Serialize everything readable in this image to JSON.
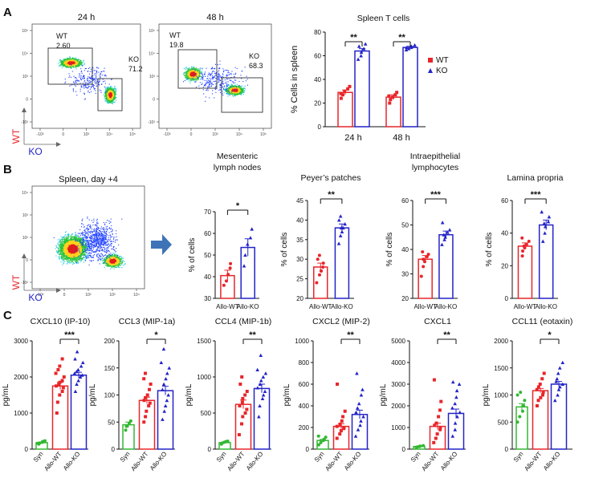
{
  "panels": {
    "A": {
      "letter": "A",
      "flow": [
        {
          "title": "24 h",
          "gates": [
            {
              "name": "WT",
              "value": "2.60"
            },
            {
              "name": "KO",
              "value": "71.2"
            }
          ]
        },
        {
          "title": "48 h",
          "gates": [
            {
              "name": "WT",
              "value": "19.8"
            },
            {
              "name": "KO",
              "value": "68.3"
            }
          ]
        }
      ],
      "axes": {
        "y": "WT",
        "x": "KO"
      },
      "log_ticks": [
        "10⁵",
        "10⁴",
        "10³",
        "0",
        "-10³"
      ],
      "log_ticks_x": [
        "-10³",
        "0",
        "10³",
        "10⁴",
        "10⁵"
      ]
    },
    "B": {
      "letter": "B",
      "flow_title": "Spleen, day +4",
      "axes": {
        "y": "WT",
        "x": "KO"
      },
      "log_ticks": [
        "10⁴",
        "10³",
        "10²",
        "0",
        "-10²"
      ],
      "log_ticks_x": [
        "-10²",
        "0",
        "10²",
        "10³",
        "10⁴"
      ]
    },
    "C": {
      "letter": "C"
    }
  },
  "colors": {
    "wt": "#e8262a",
    "ko": "#2323c8",
    "syn": "#33b733",
    "gate": "#333333",
    "arrow": "#3e73b8"
  },
  "chart_data": [
    {
      "id": "spleen-t-cells",
      "type": "bar",
      "title": "Spleen T cells",
      "ylabel": "% Cells in spleen",
      "ylim": [
        0,
        80
      ],
      "yticks": [
        0,
        20,
        40,
        60,
        80
      ],
      "categories": [
        "24 h",
        "48 h"
      ],
      "legend": [
        {
          "name": "WT",
          "marker": "square",
          "color": "#e8262a"
        },
        {
          "name": "KO",
          "marker": "triangle",
          "color": "#2323c8"
        }
      ],
      "series": [
        {
          "name": "WT",
          "values": [
            29,
            25
          ],
          "err": [
            2,
            2
          ],
          "points": [
            [
              24,
              27,
              30,
              32,
              34,
              28
            ],
            [
              20,
              23,
              25,
              27,
              29,
              26
            ]
          ]
        },
        {
          "name": "KO",
          "values": [
            64,
            67
          ],
          "err": [
            2,
            1
          ],
          "points": [
            [
              57,
              60,
              63,
              66,
              70,
              68
            ],
            [
              65,
              66,
              67,
              68,
              69,
              67
            ]
          ]
        }
      ],
      "sig": [
        {
          "label": "**",
          "category": 0
        },
        {
          "label": "**",
          "category": 1
        }
      ]
    },
    {
      "id": "mesenteric-lymph-nodes",
      "type": "bar",
      "title": "Mesenteric lymph nodes",
      "ylabel": "% of cells",
      "ylim": [
        30,
        70
      ],
      "yticks": [
        30,
        40,
        50,
        60,
        70
      ],
      "categories": [
        "Allo-WT",
        "Allo-KO"
      ],
      "values": [
        40.5,
        53.5
      ],
      "err": [
        2.5,
        4
      ],
      "points": [
        [
          36,
          38,
          41,
          44,
          46
        ],
        [
          45,
          50,
          55,
          58,
          62
        ]
      ],
      "sig": "*"
    },
    {
      "id": "peyers-patches",
      "type": "bar",
      "title": "Peyer’s patches",
      "ylabel": "% of cells",
      "ylim": [
        20,
        45
      ],
      "yticks": [
        20,
        25,
        30,
        35,
        40,
        45
      ],
      "categories": [
        "Allo-WT",
        "Allo-KO"
      ],
      "values": [
        28,
        38
      ],
      "err": [
        1,
        1
      ],
      "points": [
        [
          24,
          26,
          27,
          28,
          29,
          30,
          31,
          27
        ],
        [
          34,
          36,
          37,
          38,
          39,
          40,
          41,
          38
        ]
      ],
      "sig": "**"
    },
    {
      "id": "intraepithelial-lymphocytes",
      "type": "bar",
      "title": "Intraepithelial lymphocytes",
      "ylabel": "% of cells",
      "ylim": [
        20,
        60
      ],
      "yticks": [
        20,
        30,
        40,
        50,
        60
      ],
      "categories": [
        "Allo-WT",
        "Allo-KO"
      ],
      "values": [
        36,
        46
      ],
      "err": [
        1.5,
        1.5
      ],
      "points": [
        [
          29,
          33,
          35,
          37,
          38,
          39,
          36
        ],
        [
          42,
          44,
          45,
          47,
          48,
          51,
          46
        ]
      ],
      "sig": "***"
    },
    {
      "id": "lamina-propria",
      "type": "bar",
      "title": "Lamina propria",
      "ylabel": "% of cells",
      "ylim": [
        0,
        60
      ],
      "yticks": [
        0,
        20,
        40,
        60
      ],
      "categories": [
        "Allo-WT",
        "Allo-KO"
      ],
      "values": [
        32,
        45
      ],
      "err": [
        2,
        3
      ],
      "points": [
        [
          26,
          29,
          31,
          33,
          35,
          37,
          32
        ],
        [
          35,
          40,
          44,
          47,
          50,
          53,
          46
        ]
      ],
      "sig": "***"
    },
    {
      "id": "cxcl10",
      "type": "bar",
      "title": "CXCL10 (IP-10)",
      "ylabel": "pg/mL",
      "ylim": [
        0,
        3000
      ],
      "yticks": [
        0,
        1000,
        2000,
        3000
      ],
      "categories": [
        "Syn",
        "Allo-WT",
        "Allo-KO"
      ],
      "values": [
        180,
        1750,
        2050
      ],
      "err": [
        20,
        100,
        80
      ],
      "points": [
        [
          140,
          170,
          190,
          210,
          230,
          160
        ],
        [
          1000,
          1300,
          1500,
          1600,
          1700,
          1750,
          1800,
          1850,
          1900,
          2000,
          2100,
          2200,
          2300,
          2500
        ],
        [
          1600,
          1800,
          1900,
          2000,
          2050,
          2100,
          2150,
          2200,
          2300,
          2400,
          2500,
          2700
        ]
      ],
      "sig": {
        "label": "***",
        "from": 1,
        "to": 2
      }
    },
    {
      "id": "ccl3",
      "type": "bar",
      "title": "CCL3 (MIP-1a)",
      "ylabel": "pg/mL",
      "ylim": [
        0,
        200
      ],
      "yticks": [
        0,
        50,
        100,
        150,
        200
      ],
      "categories": [
        "Syn",
        "Allo-WT",
        "Allo-KO"
      ],
      "values": [
        45,
        90,
        108
      ],
      "err": [
        5,
        6,
        8
      ],
      "points": [
        [
          35,
          42,
          48,
          52
        ],
        [
          50,
          60,
          70,
          80,
          85,
          90,
          95,
          100,
          110,
          120,
          130,
          140
        ],
        [
          55,
          70,
          80,
          90,
          100,
          110,
          120,
          130,
          140,
          150,
          160,
          185
        ]
      ],
      "sig": {
        "label": "*",
        "from": 1,
        "to": 2
      }
    },
    {
      "id": "ccl4",
      "type": "bar",
      "title": "CCL4 (MIP-1b)",
      "ylabel": "pg/mL",
      "ylim": [
        0,
        1500
      ],
      "yticks": [
        0,
        500,
        1000,
        1500
      ],
      "categories": [
        "Syn",
        "Allo-WT",
        "Allo-KO"
      ],
      "values": [
        90,
        620,
        840
      ],
      "err": [
        10,
        60,
        60
      ],
      "points": [
        [
          70,
          85,
          95,
          105,
          110
        ],
        [
          200,
          350,
          450,
          500,
          550,
          600,
          650,
          700,
          750,
          800,
          900,
          1000
        ],
        [
          450,
          600,
          700,
          750,
          800,
          850,
          900,
          950,
          1000,
          1050,
          1100,
          1300
        ]
      ],
      "sig": {
        "label": "**",
        "from": 1,
        "to": 2
      }
    },
    {
      "id": "cxcl2",
      "type": "bar",
      "title": "CXCL2 (MIP-2)",
      "ylabel": "pg/mL",
      "ylim": [
        0,
        1000
      ],
      "yticks": [
        0,
        200,
        400,
        600,
        800,
        1000
      ],
      "categories": [
        "Syn",
        "Allo-WT",
        "Allo-KO"
      ],
      "values": [
        80,
        210,
        320
      ],
      "err": [
        10,
        25,
        40
      ],
      "points": [
        [
          40,
          60,
          80,
          90,
          110,
          120
        ],
        [
          100,
          140,
          170,
          190,
          200,
          210,
          230,
          260,
          300,
          350,
          600
        ],
        [
          120,
          180,
          220,
          260,
          300,
          340,
          380,
          420,
          500,
          550,
          700
        ]
      ],
      "sig": {
        "label": "**",
        "from": 1,
        "to": 2
      }
    },
    {
      "id": "cxcl1",
      "type": "bar",
      "title": "CXCL1",
      "ylabel": "pg/mL",
      "ylim": [
        0,
        5000
      ],
      "yticks": [
        0,
        1000,
        2000,
        3000,
        4000,
        5000
      ],
      "categories": [
        "Syn",
        "Allo-WT",
        "Allo-KO"
      ],
      "values": [
        120,
        1050,
        1650
      ],
      "err": [
        15,
        150,
        200
      ],
      "points": [
        [
          80,
          100,
          120,
          140,
          160
        ],
        [
          300,
          500,
          700,
          900,
          1000,
          1100,
          1200,
          1500,
          1800,
          2200,
          3200
        ],
        [
          600,
          900,
          1200,
          1500,
          1700,
          1900,
          2100,
          2400,
          2700,
          3000,
          3100
        ]
      ],
      "sig": {
        "label": "**",
        "from": 1,
        "to": 2
      }
    },
    {
      "id": "ccl11",
      "type": "bar",
      "title": "CCL11 (eotaxin)",
      "ylabel": "pg/mL",
      "ylim": [
        0,
        2000
      ],
      "yticks": [
        0,
        500,
        1000,
        1500,
        2000
      ],
      "categories": [
        "Syn",
        "Allo-WT",
        "Allo-KO"
      ],
      "values": [
        780,
        1080,
        1200
      ],
      "err": [
        60,
        40,
        50
      ],
      "points": [
        [
          500,
          600,
          700,
          800,
          900,
          1000,
          1050
        ],
        [
          800,
          900,
          950,
          1000,
          1050,
          1100,
          1150,
          1200,
          1300,
          1400
        ],
        [
          900,
          1000,
          1100,
          1150,
          1200,
          1250,
          1300,
          1400,
          1500,
          1600
        ]
      ],
      "sig": {
        "label": "*",
        "from": 1,
        "to": 2
      }
    }
  ]
}
